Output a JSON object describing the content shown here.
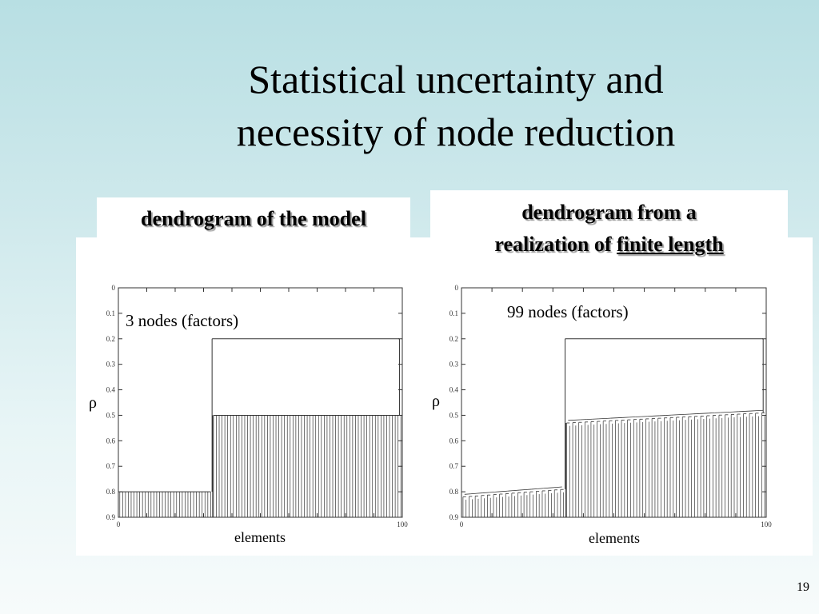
{
  "slide": {
    "title_line1": "Statistical uncertainty and",
    "title_line2": "necessity of node reduction",
    "page_number": "19"
  },
  "panels": {
    "left_label": "dendrogram of the model",
    "right_label_line1": "dendrogram from a",
    "right_label_prefix": "realization of ",
    "right_label_underlined": "finite length"
  },
  "chart_data": [
    {
      "type": "dendrogram",
      "annotation": "3 nodes (factors)",
      "xlabel": "elements",
      "ylabel": "ρ",
      "xlim": [
        0,
        100
      ],
      "ylim": [
        0,
        0.9
      ],
      "y_inverted": true,
      "yticks": [
        "0",
        "0.1",
        "0.2",
        "0.3",
        "0.4",
        "0.5",
        "0.6",
        "0.7",
        "0.8",
        "0.9"
      ],
      "xticks": [
        "0",
        "100"
      ],
      "leaves": 100,
      "clusters": [
        {
          "from": 0,
          "to": 33,
          "merge_rho": 0.8
        },
        {
          "from": 33,
          "to": 100,
          "merge_rho": 0.5
        }
      ],
      "top_merge_rho": 0.2
    },
    {
      "type": "dendrogram",
      "annotation": "99 nodes (factors)",
      "xlabel": "elements",
      "ylabel": "ρ",
      "xlim": [
        0,
        100
      ],
      "ylim": [
        0,
        0.9
      ],
      "y_inverted": true,
      "yticks": [
        "0",
        "0.1",
        "0.2",
        "0.3",
        "0.4",
        "0.5",
        "0.6",
        "0.7",
        "0.8",
        "0.9"
      ],
      "xticks": [
        "0",
        "100"
      ],
      "leaves": 100,
      "clusters": [
        {
          "from": 0,
          "to": 34,
          "merge_rho_start": 0.82,
          "merge_rho_end": 0.79
        },
        {
          "from": 34,
          "to": 100,
          "merge_rho_start": 0.53,
          "merge_rho_end": 0.49
        }
      ],
      "top_merge_rho": 0.2
    }
  ]
}
